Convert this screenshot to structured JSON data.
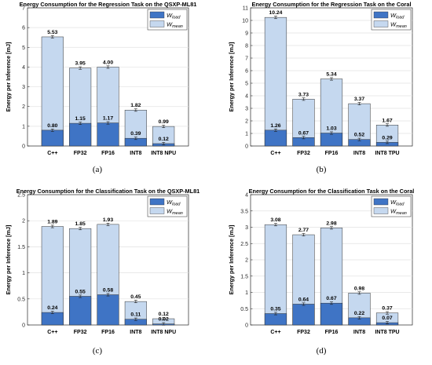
{
  "colors": {
    "load": "#3f74c5",
    "mean": "#c5d8ef",
    "edge": "#333333"
  },
  "legend": {
    "load_main": "W",
    "load_sub": "load",
    "mean_main": "W",
    "mean_sub": "mean"
  },
  "chart_data": [
    {
      "type": "bar",
      "panel": "a",
      "caption": "(a)",
      "title": "Energy Consumption for the Regression Task on the QSXP-ML81",
      "ylabel": "Energy per Inference [mJ]",
      "xlabel": "",
      "categories": [
        "C++",
        "FP32",
        "FP16",
        "INT8",
        "INT8 NPU"
      ],
      "ylim": [
        0,
        7
      ],
      "yticks": [
        "0",
        "1",
        "2",
        "3",
        "4",
        "5",
        "6",
        "7"
      ],
      "yticks_val": [
        0,
        1,
        2,
        3,
        4,
        5,
        6,
        7
      ],
      "grid": true,
      "legend_position": "top-right",
      "series": [
        {
          "name": "W load",
          "values": [
            0.8,
            1.15,
            1.17,
            0.39,
            0.12
          ],
          "labels": [
            "0.80",
            "1.15",
            "1.17",
            "0.39",
            "0.12"
          ]
        },
        {
          "name": "W mean",
          "values": [
            5.53,
            3.95,
            4.0,
            1.82,
            0.99
          ],
          "labels": [
            "5.53",
            "3.95",
            "4.00",
            "1.82",
            "0.99"
          ]
        }
      ]
    },
    {
      "type": "bar",
      "panel": "b",
      "caption": "(b)",
      "title": "Energy Consumption for the Regression Task on the Coral",
      "ylabel": "Energy per Inference [mJ]",
      "xlabel": "",
      "categories": [
        "C++",
        "FP32",
        "FP16",
        "INT8",
        "INT8 TPU"
      ],
      "ylim": [
        0,
        11
      ],
      "yticks": [
        "0",
        "1",
        "2",
        "3",
        "4",
        "5",
        "6",
        "7",
        "8",
        "9",
        "10",
        "11"
      ],
      "yticks_val": [
        0,
        1,
        2,
        3,
        4,
        5,
        6,
        7,
        8,
        9,
        10,
        11
      ],
      "grid": true,
      "legend_position": "top-right",
      "series": [
        {
          "name": "W load",
          "values": [
            1.26,
            0.67,
            1.03,
            0.52,
            0.29
          ],
          "labels": [
            "1.26",
            "0.67",
            "1.03",
            "0.52",
            "0.29"
          ]
        },
        {
          "name": "W mean",
          "values": [
            10.24,
            3.73,
            5.34,
            3.37,
            1.67
          ],
          "labels": [
            "10.24",
            "3.73",
            "5.34",
            "3.37",
            "1.67"
          ]
        }
      ]
    },
    {
      "type": "bar",
      "panel": "c",
      "caption": "(c)",
      "title": "Energy Consumption for the Classification Task on the QSXP-ML81",
      "ylabel": "Energy per Inference [mJ]",
      "xlabel": "",
      "categories": [
        "C++",
        "FP32",
        "FP16",
        "INT8",
        "INT8 NPU"
      ],
      "ylim": [
        0,
        2.5
      ],
      "yticks": [
        "0",
        "0.5",
        "1",
        "1.5",
        "2",
        "2.5"
      ],
      "yticks_val": [
        0,
        0.5,
        1,
        1.5,
        2,
        2.5
      ],
      "grid": true,
      "legend_position": "top-right",
      "series": [
        {
          "name": "W load",
          "values": [
            0.24,
            0.55,
            0.58,
            0.11,
            0.02
          ],
          "labels": [
            "0.24",
            "0.55",
            "0.58",
            "0.11",
            "0.02"
          ]
        },
        {
          "name": "W mean",
          "values": [
            1.89,
            1.85,
            1.93,
            0.45,
            0.12
          ],
          "labels": [
            "1.89",
            "1.85",
            "1.93",
            "0.45",
            "0.12"
          ]
        }
      ]
    },
    {
      "type": "bar",
      "panel": "d",
      "caption": "(d)",
      "title": "Energy Consumption for the Classification Task on the Coral",
      "ylabel": "Energy per Inference [mJ]",
      "xlabel": "",
      "categories": [
        "C++",
        "FP32",
        "FP16",
        "INT8",
        "INT8 TPU"
      ],
      "ylim": [
        0,
        4
      ],
      "yticks": [
        "0",
        "0.5",
        "1",
        "1.5",
        "2",
        "2.5",
        "3",
        "3.5",
        "4"
      ],
      "yticks_val": [
        0,
        0.5,
        1,
        1.5,
        2,
        2.5,
        3,
        3.5,
        4
      ],
      "grid": true,
      "legend_position": "top-right",
      "series": [
        {
          "name": "W load",
          "values": [
            0.35,
            0.64,
            0.67,
            0.22,
            0.07
          ],
          "labels": [
            "0.35",
            "0.64",
            "0.67",
            "0.22",
            "0.07"
          ]
        },
        {
          "name": "W mean",
          "values": [
            3.08,
            2.77,
            2.98,
            0.98,
            0.37
          ],
          "labels": [
            "3.08",
            "2.77",
            "2.98",
            "0.98",
            "0.37"
          ]
        }
      ]
    }
  ]
}
